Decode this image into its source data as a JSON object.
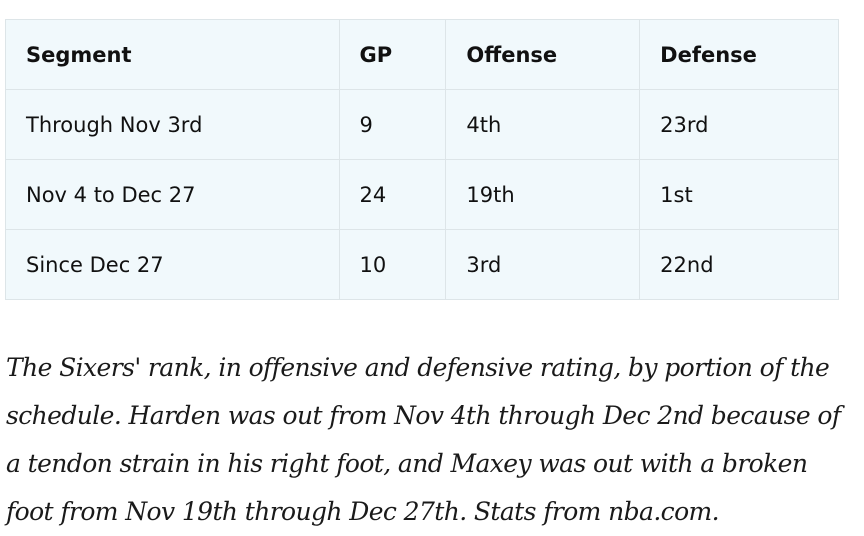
{
  "table": {
    "headers": [
      "Segment",
      "GP",
      "Offense",
      "Defense"
    ],
    "rows": [
      [
        "Through Nov 3rd",
        "9",
        "4th",
        "23rd"
      ],
      [
        "Nov 4 to Dec 27",
        "24",
        "19th",
        "1st"
      ],
      [
        "Since Dec 27",
        "10",
        "3rd",
        "22nd"
      ]
    ]
  },
  "caption": "The Sixers' rank, in offensive and defensive rating, by portion of the schedule. Harden was out from Nov 4th through Dec 2nd because of a tendon strain in his right foot, and Maxey was out with a broken foot from Nov 19th through Dec 27th. Stats from nba.com."
}
